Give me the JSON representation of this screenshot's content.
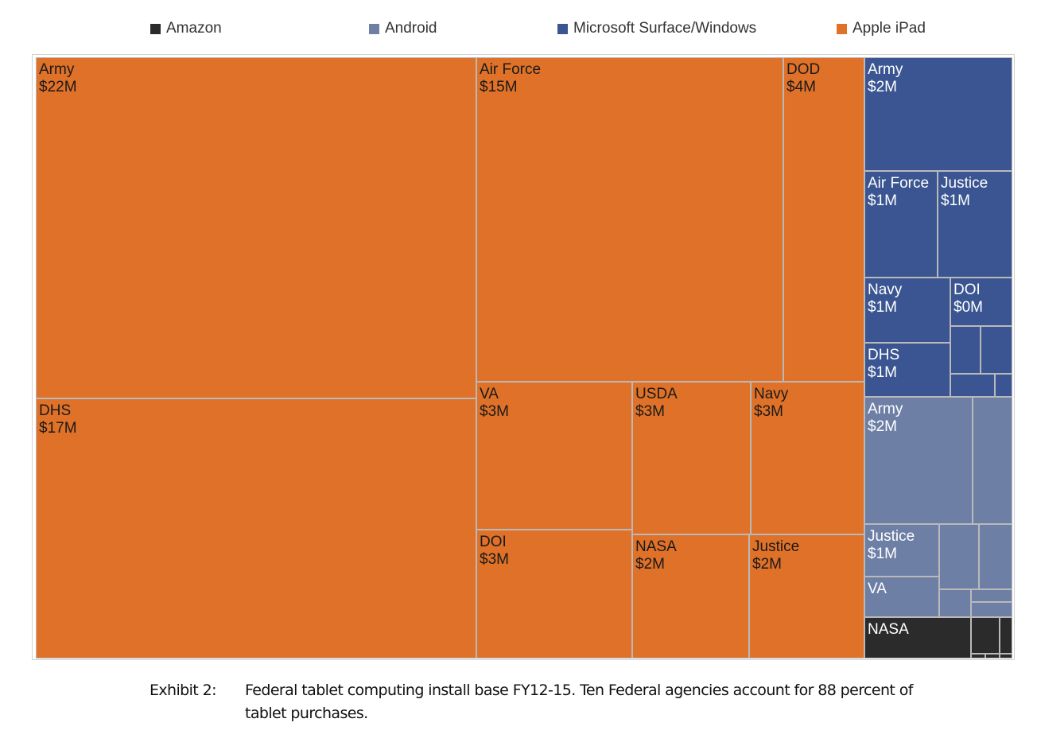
{
  "legend": {
    "items": [
      {
        "label": "Amazon",
        "color": "#2b2b2b"
      },
      {
        "label": "Android",
        "color": "#6e7fa5"
      },
      {
        "label": "Microsoft Surface/Windows",
        "color": "#3a5591"
      },
      {
        "label": "Apple iPad",
        "color": "#e07128"
      }
    ]
  },
  "chart_data": {
    "type": "treemap",
    "value_unit": "$M",
    "groups": [
      {
        "name": "Apple iPad",
        "color": "#e07128",
        "items": [
          {
            "label": "Army",
            "value_label": "$22M",
            "value": 22
          },
          {
            "label": "DHS",
            "value_label": "$17M",
            "value": 17
          },
          {
            "label": "Air Force",
            "value_label": "$15M",
            "value": 15
          },
          {
            "label": "DOD",
            "value_label": "$4M",
            "value": 4
          },
          {
            "label": "VA",
            "value_label": "$3M",
            "value": 3
          },
          {
            "label": "DOI",
            "value_label": "$3M",
            "value": 3
          },
          {
            "label": "USDA",
            "value_label": "$3M",
            "value": 3
          },
          {
            "label": "Navy",
            "value_label": "$3M",
            "value": 3
          },
          {
            "label": "NASA",
            "value_label": "$2M",
            "value": 2
          },
          {
            "label": "Justice",
            "value_label": "$2M",
            "value": 2
          }
        ]
      },
      {
        "name": "Microsoft Surface/Windows",
        "color": "#3a5591",
        "items": [
          {
            "label": "Army",
            "value_label": "$2M",
            "value": 2
          },
          {
            "label": "Air Force",
            "value_label": "$1M",
            "value": 1
          },
          {
            "label": "Justice",
            "value_label": "$1M",
            "value": 1
          },
          {
            "label": "Navy",
            "value_label": "$1M",
            "value": 1
          },
          {
            "label": "DOI",
            "value_label": "$0M",
            "value": 0
          },
          {
            "label": "DHS",
            "value_label": "$1M",
            "value": 1
          },
          {
            "label": "",
            "value_label": "",
            "value": null
          },
          {
            "label": "",
            "value_label": "",
            "value": null
          },
          {
            "label": "",
            "value_label": "",
            "value": null
          },
          {
            "label": "",
            "value_label": "",
            "value": null
          }
        ]
      },
      {
        "name": "Android",
        "color": "#6e7fa5",
        "items": [
          {
            "label": "Army",
            "value_label": "$2M",
            "value": 2
          },
          {
            "label": "",
            "value_label": "",
            "value": null
          },
          {
            "label": "Justice",
            "value_label": "$1M",
            "value": 1
          },
          {
            "label": "",
            "value_label": "",
            "value": null
          },
          {
            "label": "",
            "value_label": "",
            "value": null
          },
          {
            "label": "VA",
            "value_label": "",
            "value": null
          },
          {
            "label": "",
            "value_label": "",
            "value": null
          },
          {
            "label": "",
            "value_label": "",
            "value": null
          },
          {
            "label": "",
            "value_label": "",
            "value": null
          }
        ]
      },
      {
        "name": "Amazon",
        "color": "#2b2b2b",
        "items": [
          {
            "label": "NASA",
            "value_label": "",
            "value": null
          },
          {
            "label": "",
            "value_label": "",
            "value": null
          },
          {
            "label": "",
            "value_label": "",
            "value": null
          },
          {
            "label": "",
            "value_label": "",
            "value": null
          },
          {
            "label": "",
            "value_label": "",
            "value": null
          },
          {
            "label": "",
            "value_label": "",
            "value": null
          }
        ]
      }
    ]
  },
  "caption": {
    "label": "Exhibit 2:",
    "line1": "Federal tablet computing install base FY12-15. Ten Federal agencies account for 88 percent of",
    "line2": "tablet purchases."
  }
}
